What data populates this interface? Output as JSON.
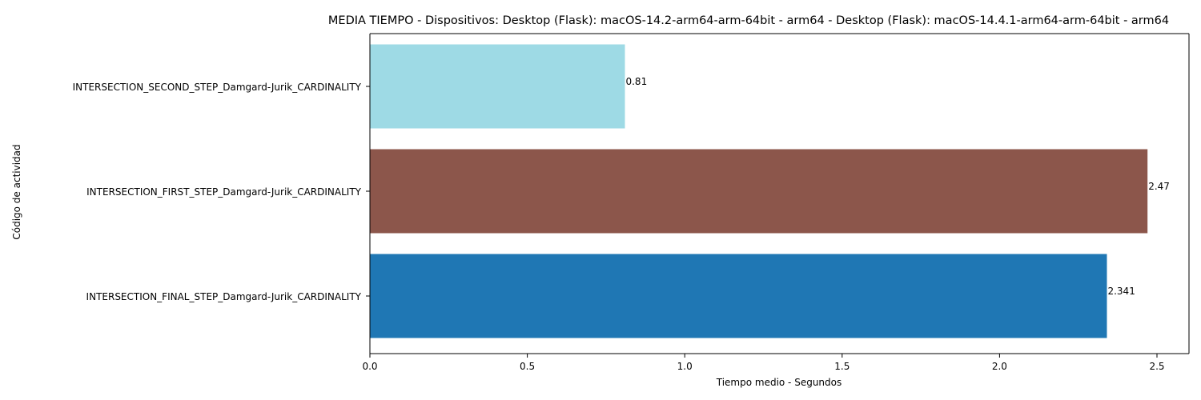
{
  "chart_data": {
    "type": "bar",
    "orientation": "horizontal",
    "title": "MEDIA TIEMPO - Dispositivos: Desktop (Flask): macOS-14.2-arm64-arm-64bit - arm64 - Desktop (Flask): macOS-14.4.1-arm64-arm-64bit - arm64",
    "xlabel": "Tiempo medio - Segundos",
    "ylabel": "Código de actividad",
    "categories": [
      "INTERSECTION_FINAL_STEP_Damgard-Jurik_CARDINALITY",
      "INTERSECTION_FIRST_STEP_Damgard-Jurik_CARDINALITY",
      "INTERSECTION_SECOND_STEP_Damgard-Jurik_CARDINALITY"
    ],
    "values": [
      2.341,
      2.47,
      0.81
    ],
    "value_labels": [
      "2.341",
      "2.47",
      "0.81"
    ],
    "colors": [
      "#1f77b4",
      "#8c564b",
      "#9edae5"
    ],
    "xlim": [
      0,
      2.6
    ],
    "xticks": [
      0.0,
      0.5,
      1.0,
      1.5,
      2.0,
      2.5
    ],
    "xtick_labels": [
      "0.0",
      "0.5",
      "1.0",
      "1.5",
      "2.0",
      "2.5"
    ],
    "grid": false,
    "legend": "none"
  }
}
